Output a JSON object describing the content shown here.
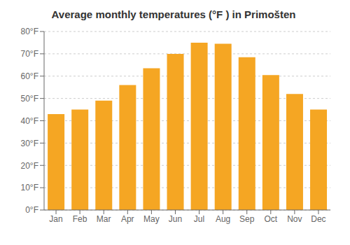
{
  "chart_data": {
    "type": "bar",
    "title": "Average monthly temperatures (°F ) in Primošten",
    "categories": [
      "Jan",
      "Feb",
      "Mar",
      "Apr",
      "May",
      "Jun",
      "Jul",
      "Aug",
      "Sep",
      "Oct",
      "Nov",
      "Dec"
    ],
    "values": [
      43,
      45,
      49,
      56,
      63.5,
      70,
      75,
      74.5,
      68.5,
      60.5,
      52,
      45
    ],
    "color": "#F5A623",
    "ylim": [
      0,
      80
    ],
    "yticks": [
      {
        "value": 0,
        "label": "0°F"
      },
      {
        "value": 10,
        "label": "10°F"
      },
      {
        "value": 20,
        "label": "20°F"
      },
      {
        "value": 30,
        "label": "30°F"
      },
      {
        "value": 40,
        "label": "40°F"
      },
      {
        "value": 50,
        "label": "50°F"
      },
      {
        "value": 60,
        "label": "60°F"
      },
      {
        "value": 70,
        "label": "70°F"
      },
      {
        "value": 80,
        "label": "80°F"
      }
    ],
    "grid": true
  }
}
